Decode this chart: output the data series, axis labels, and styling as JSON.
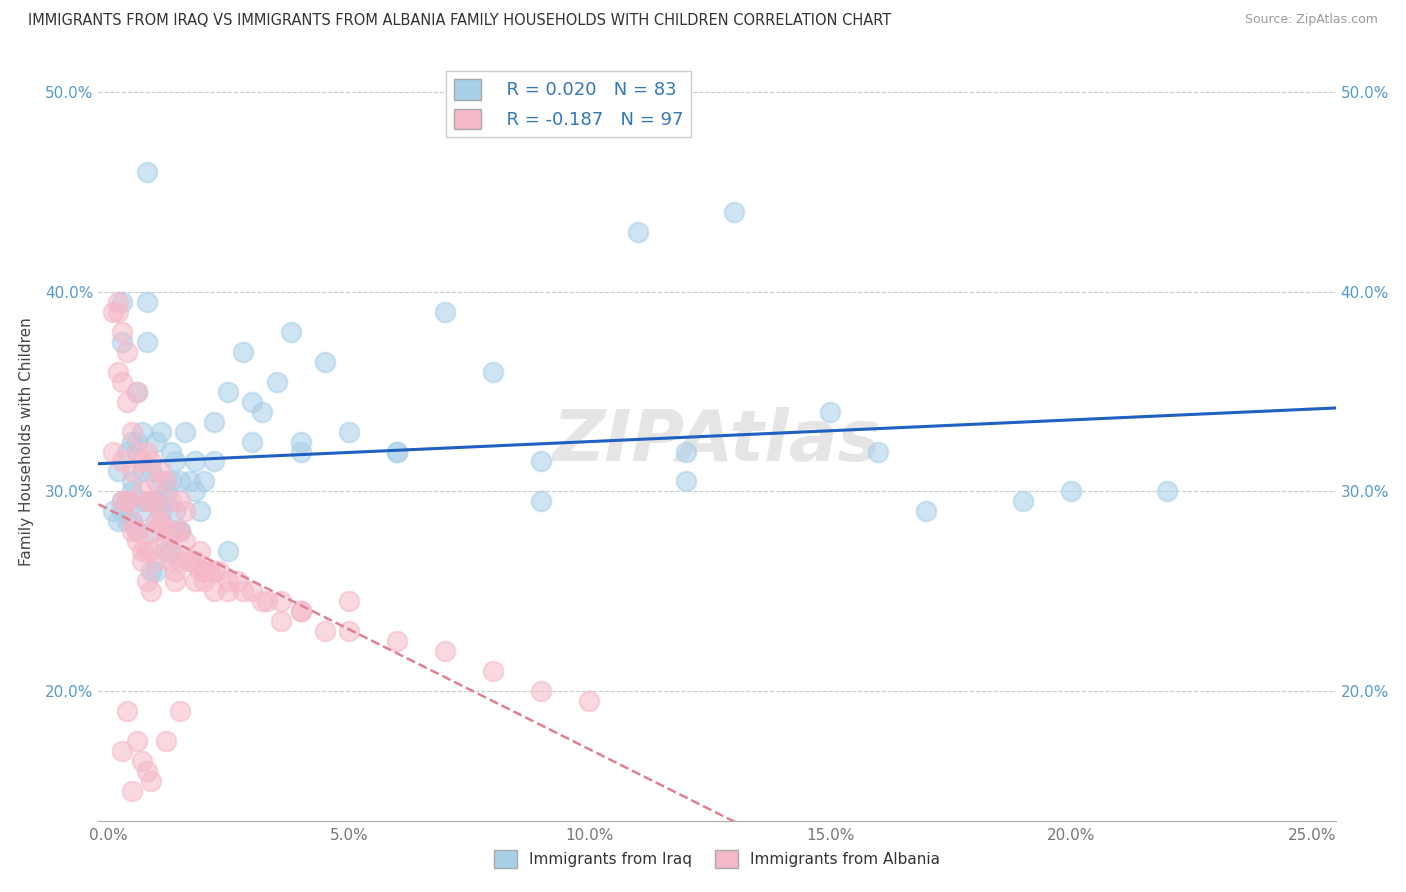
{
  "title": "IMMIGRANTS FROM IRAQ VS IMMIGRANTS FROM ALBANIA FAMILY HOUSEHOLDS WITH CHILDREN CORRELATION CHART",
  "source": "Source: ZipAtlas.com",
  "xlabel_iraq": "Immigrants from Iraq",
  "xlabel_albania": "Immigrants from Albania",
  "ylabel": "Family Households with Children",
  "R_iraq": 0.02,
  "N_iraq": 83,
  "R_albania": -0.187,
  "N_albania": 97,
  "xlim": [
    -0.002,
    0.255
  ],
  "ylim": [
    0.135,
    0.515
  ],
  "xticks": [
    0.0,
    0.05,
    0.1,
    0.15,
    0.2,
    0.25
  ],
  "yticks": [
    0.2,
    0.3,
    0.4,
    0.5
  ],
  "color_iraq": "#a8cfe8",
  "color_albania": "#f5b8c8",
  "trend_iraq_color": "#2060c0",
  "trend_albania_color": "#e08090",
  "watermark": "ZIPAtlas",
  "iraq_x": [
    0.001,
    0.002,
    0.002,
    0.003,
    0.003,
    0.003,
    0.004,
    0.004,
    0.004,
    0.005,
    0.005,
    0.005,
    0.006,
    0.006,
    0.006,
    0.007,
    0.007,
    0.007,
    0.008,
    0.008,
    0.009,
    0.009,
    0.009,
    0.01,
    0.01,
    0.011,
    0.011,
    0.012,
    0.012,
    0.013,
    0.013,
    0.014,
    0.014,
    0.015,
    0.015,
    0.016,
    0.017,
    0.018,
    0.019,
    0.02,
    0.022,
    0.025,
    0.028,
    0.03,
    0.032,
    0.035,
    0.038,
    0.04,
    0.045,
    0.05,
    0.06,
    0.07,
    0.08,
    0.09,
    0.11,
    0.12,
    0.13,
    0.15,
    0.17,
    0.2,
    0.003,
    0.005,
    0.007,
    0.009,
    0.011,
    0.013,
    0.015,
    0.02,
    0.025,
    0.03,
    0.04,
    0.06,
    0.09,
    0.12,
    0.16,
    0.19,
    0.22,
    0.008,
    0.01,
    0.012,
    0.014,
    0.018,
    0.022
  ],
  "iraq_y": [
    0.29,
    0.31,
    0.285,
    0.395,
    0.375,
    0.295,
    0.32,
    0.295,
    0.285,
    0.325,
    0.305,
    0.285,
    0.35,
    0.325,
    0.28,
    0.33,
    0.31,
    0.29,
    0.395,
    0.375,
    0.31,
    0.295,
    0.28,
    0.325,
    0.295,
    0.33,
    0.305,
    0.295,
    0.27,
    0.305,
    0.32,
    0.315,
    0.29,
    0.305,
    0.28,
    0.33,
    0.305,
    0.315,
    0.29,
    0.305,
    0.335,
    0.35,
    0.37,
    0.325,
    0.34,
    0.355,
    0.38,
    0.32,
    0.365,
    0.33,
    0.32,
    0.39,
    0.36,
    0.315,
    0.43,
    0.32,
    0.44,
    0.34,
    0.29,
    0.3,
    0.29,
    0.3,
    0.295,
    0.26,
    0.29,
    0.27,
    0.28,
    0.26,
    0.27,
    0.345,
    0.325,
    0.32,
    0.295,
    0.305,
    0.32,
    0.295,
    0.3,
    0.46,
    0.26,
    0.3,
    0.28,
    0.3,
    0.315
  ],
  "albania_x": [
    0.001,
    0.001,
    0.002,
    0.002,
    0.003,
    0.003,
    0.003,
    0.004,
    0.004,
    0.004,
    0.005,
    0.005,
    0.005,
    0.006,
    0.006,
    0.006,
    0.007,
    0.007,
    0.007,
    0.008,
    0.008,
    0.008,
    0.009,
    0.009,
    0.009,
    0.01,
    0.01,
    0.01,
    0.011,
    0.011,
    0.012,
    0.012,
    0.013,
    0.013,
    0.014,
    0.014,
    0.015,
    0.015,
    0.016,
    0.017,
    0.018,
    0.019,
    0.02,
    0.021,
    0.022,
    0.023,
    0.025,
    0.027,
    0.03,
    0.033,
    0.036,
    0.04,
    0.045,
    0.05,
    0.06,
    0.07,
    0.08,
    0.09,
    0.1,
    0.003,
    0.004,
    0.005,
    0.006,
    0.007,
    0.008,
    0.009,
    0.01,
    0.011,
    0.012,
    0.013,
    0.014,
    0.015,
    0.016,
    0.017,
    0.018,
    0.019,
    0.02,
    0.022,
    0.025,
    0.028,
    0.032,
    0.036,
    0.04,
    0.05,
    0.002,
    0.003,
    0.004,
    0.005,
    0.006,
    0.007,
    0.008,
    0.009,
    0.01,
    0.012,
    0.015,
    0.02
  ],
  "albania_y": [
    0.32,
    0.39,
    0.39,
    0.36,
    0.38,
    0.355,
    0.295,
    0.37,
    0.345,
    0.295,
    0.33,
    0.31,
    0.28,
    0.35,
    0.32,
    0.28,
    0.315,
    0.3,
    0.27,
    0.32,
    0.295,
    0.27,
    0.315,
    0.295,
    0.27,
    0.305,
    0.28,
    0.265,
    0.31,
    0.285,
    0.305,
    0.275,
    0.295,
    0.27,
    0.28,
    0.26,
    0.28,
    0.265,
    0.275,
    0.265,
    0.265,
    0.27,
    0.255,
    0.26,
    0.26,
    0.26,
    0.25,
    0.255,
    0.25,
    0.245,
    0.245,
    0.24,
    0.23,
    0.23,
    0.225,
    0.22,
    0.21,
    0.2,
    0.195,
    0.315,
    0.295,
    0.285,
    0.275,
    0.265,
    0.255,
    0.25,
    0.295,
    0.285,
    0.28,
    0.265,
    0.255,
    0.295,
    0.29,
    0.265,
    0.255,
    0.26,
    0.26,
    0.25,
    0.255,
    0.25,
    0.245,
    0.235,
    0.24,
    0.245,
    0.395,
    0.17,
    0.19,
    0.15,
    0.175,
    0.165,
    0.16,
    0.155,
    0.285,
    0.175,
    0.19,
    0.26
  ]
}
